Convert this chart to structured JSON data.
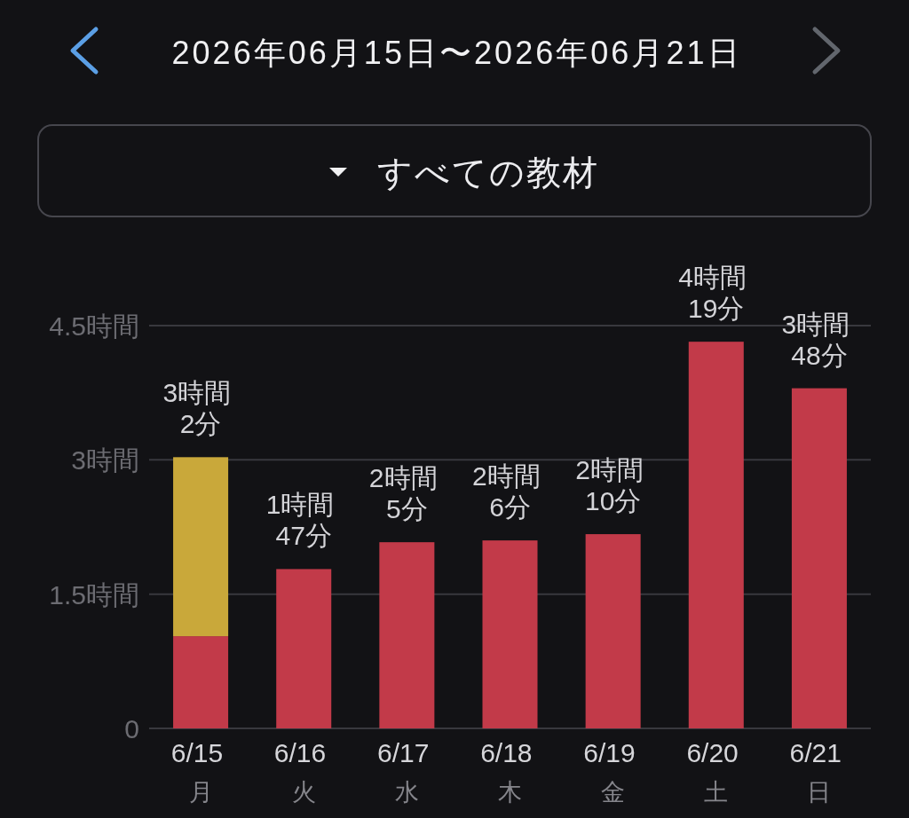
{
  "chart_data": {
    "type": "bar",
    "stacked": true,
    "title": "2026年06月15日〜2026年06月21日",
    "subtitle": "すべての教材",
    "categories": [
      "6/15 月",
      "6/16 火",
      "6/17 水",
      "6/18 木",
      "6/19 金",
      "6/20 土",
      "6/21 日"
    ],
    "series": [
      {
        "color": "#c23a49",
        "values": [
          1.03,
          1.78,
          2.08,
          2.1,
          2.17,
          4.32,
          3.8
        ]
      },
      {
        "color": "#c9a83a",
        "values": [
          2.0,
          null,
          null,
          null,
          null,
          null,
          null
        ]
      }
    ],
    "totals": [
      "3時間 2分",
      "1時間 47分",
      "2時間 5分",
      "2時間 6分",
      "2時間 10分",
      "4時間 19分",
      "3時間 48分"
    ],
    "ylim": [
      0,
      4.5
    ],
    "yticks": [
      0,
      {
        "value": 1.5,
        "label": "1.5時間"
      },
      {
        "value": 3,
        "label": "3時間"
      },
      {
        "value": 4.5,
        "label": "4.5時間"
      }
    ],
    "grid": "y"
  }
}
